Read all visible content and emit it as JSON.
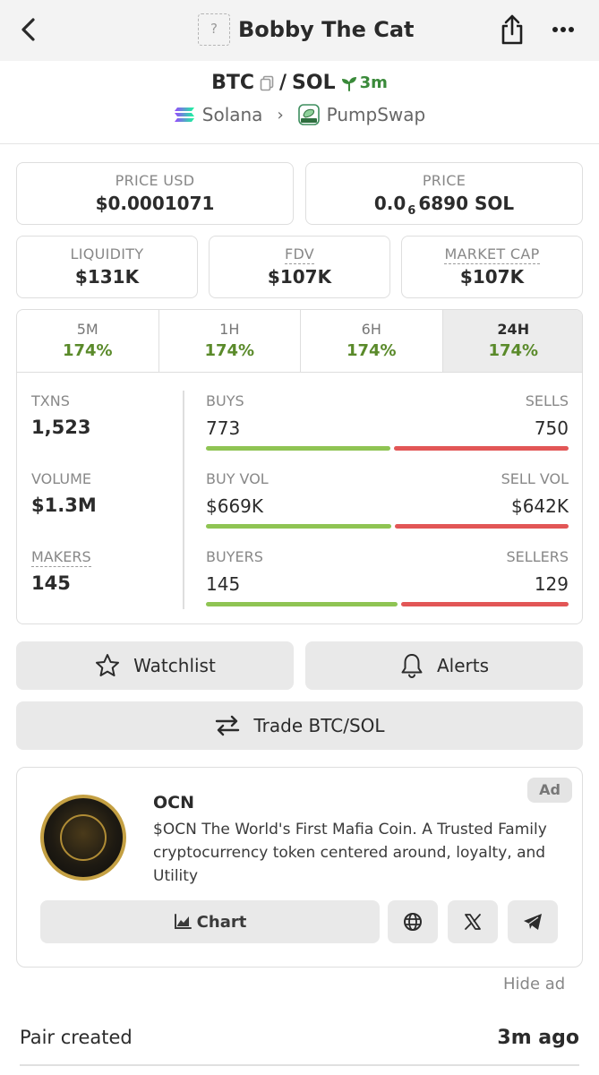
{
  "header": {
    "title": "Bobby The Cat",
    "thumb_placeholder": "?"
  },
  "pair": {
    "base": "BTC",
    "quote": "SOL",
    "separator": "/",
    "age": "3m",
    "chain": "Solana",
    "dex": "PumpSwap"
  },
  "stats": {
    "price_usd_label": "PRICE USD",
    "price_usd": "$0.0001071",
    "price_label": "PRICE",
    "price_prefix": "0.0",
    "price_zeros": "6",
    "price_suffix": "6890 SOL",
    "liquidity_label": "LIQUIDITY",
    "liquidity": "$131K",
    "fdv_label": "FDV",
    "fdv": "$107K",
    "mcap_label": "MARKET CAP",
    "mcap": "$107K"
  },
  "timeframes": [
    {
      "label": "5M",
      "value": "174%"
    },
    {
      "label": "1H",
      "value": "174%"
    },
    {
      "label": "6H",
      "value": "174%"
    },
    {
      "label": "24H",
      "value": "174%"
    }
  ],
  "activity": {
    "txns_label": "TXNS",
    "txns": "1,523",
    "volume_label": "VOLUME",
    "volume": "$1.3M",
    "makers_label": "MAKERS",
    "makers": "145",
    "buys_label": "BUYS",
    "buys": "773",
    "sells_label": "SELLS",
    "sells": "750",
    "buys_fraction": 0.508,
    "buy_vol_label": "BUY VOL",
    "buy_vol": "$669K",
    "sell_vol_label": "SELL VOL",
    "sell_vol": "$642K",
    "buy_vol_fraction": 0.51,
    "buyers_label": "BUYERS",
    "buyers": "145",
    "sellers_label": "SELLERS",
    "sellers": "129",
    "buyers_fraction": 0.529,
    "colors": {
      "buy": "#8fc453",
      "sell": "#e25656"
    }
  },
  "actions": {
    "watchlist": "Watchlist",
    "alerts": "Alerts",
    "trade": "Trade BTC/SOL"
  },
  "ad": {
    "badge": "Ad",
    "name": "OCN",
    "description": "$OCN The World's First Mafia Coin. A Trusted Family cryptocurrency token centered around, loyalty, and Utility",
    "chart_label": "Chart",
    "hide_label": "Hide ad"
  },
  "info": {
    "pair_created_label": "Pair created",
    "pair_created_value": "3m ago"
  }
}
